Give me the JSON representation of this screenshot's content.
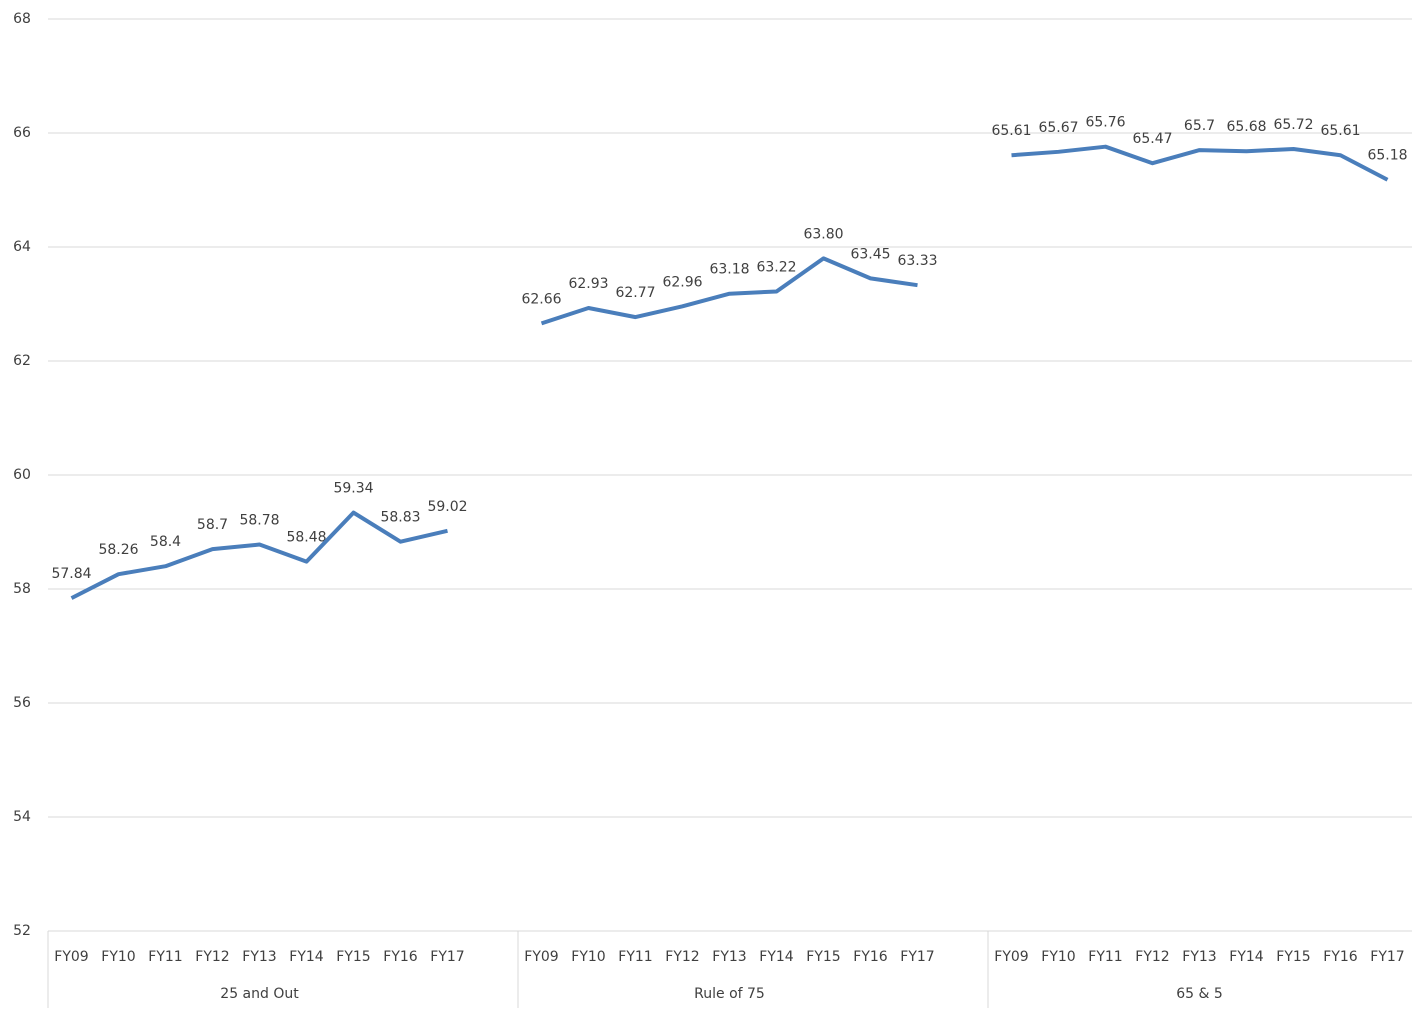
{
  "chart_data": {
    "type": "line",
    "color": "#4a7ebb",
    "grid": true,
    "ylim": [
      52,
      68
    ],
    "yticks": [
      52,
      54,
      56,
      58,
      60,
      62,
      64,
      66,
      68
    ],
    "groups": [
      {
        "label": "25 and Out",
        "categories": [
          "FY09",
          "FY10",
          "FY11",
          "FY12",
          "FY13",
          "FY14",
          "FY15",
          "FY16",
          "FY17"
        ],
        "values": [
          57.84,
          58.26,
          58.4,
          58.7,
          58.78,
          58.48,
          59.34,
          58.83,
          59.02
        ]
      },
      {
        "label": "Rule of 75",
        "categories": [
          "FY09",
          "FY10",
          "FY11",
          "FY12",
          "FY13",
          "FY14",
          "FY15",
          "FY16",
          "FY17"
        ],
        "values": [
          62.66,
          62.93,
          62.77,
          62.96,
          63.18,
          63.22,
          63.8,
          63.45,
          63.33
        ],
        "value_labels": [
          "62.66",
          "62.93",
          "62.77",
          "62.96",
          "63.18",
          "63.22",
          "63.80",
          "63.45",
          "63.33"
        ]
      },
      {
        "label": "65 & 5",
        "categories": [
          "FY09",
          "FY10",
          "FY11",
          "FY12",
          "FY13",
          "FY14",
          "FY15",
          "FY16",
          "FY17"
        ],
        "values": [
          65.61,
          65.67,
          65.76,
          65.47,
          65.7,
          65.68,
          65.72,
          65.61,
          65.18
        ]
      }
    ]
  }
}
